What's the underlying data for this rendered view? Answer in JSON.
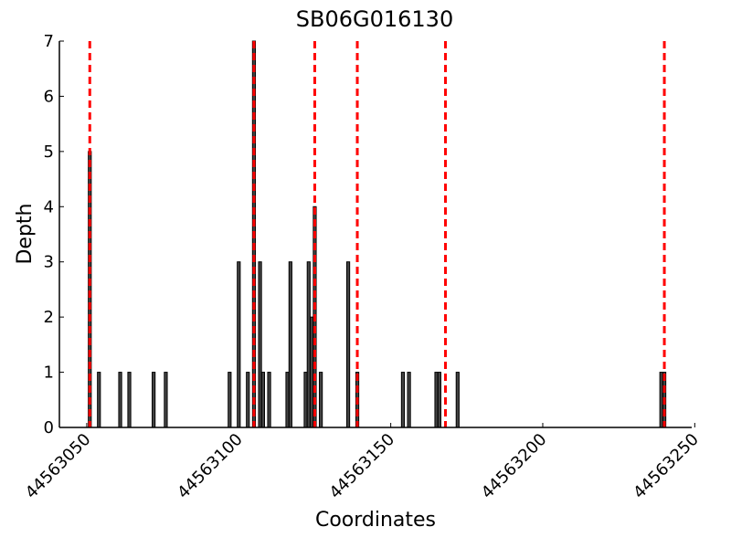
{
  "chart_data": {
    "type": "bar",
    "title": "SB06G016130",
    "x_label": "Coordinates",
    "y_label": "Depth",
    "x": [
      44563051,
      44563054,
      44563061,
      44563064,
      44563072,
      44563076,
      44563097,
      44563100,
      44563103,
      44563105,
      44563107,
      44563108,
      44563110,
      44563116,
      44563117,
      44563122,
      44563123,
      44563124,
      44563125,
      44563127,
      44563136,
      44563139,
      44563154,
      44563156,
      44563165,
      44563166,
      44563172,
      44563239,
      44563240
    ],
    "values": [
      5,
      1,
      1,
      1,
      1,
      1,
      1,
      3,
      1,
      7,
      3,
      1,
      1,
      1,
      3,
      1,
      3,
      2,
      4,
      1,
      3,
      1,
      1,
      1,
      1,
      1,
      1,
      1,
      1
    ],
    "color": "#444444",
    "vlines": [
      44563051,
      44563105,
      44563125,
      44563139,
      44563168,
      44563240
    ],
    "vline_color": "#ff0000",
    "xlim": [
      44563041,
      44563249
    ],
    "xticks": [
      44563050,
      44563100,
      44563150,
      44563200,
      44563250
    ],
    "ylim": [
      0,
      7
    ],
    "yticks": [
      0,
      1,
      2,
      3,
      4,
      5,
      6,
      7
    ]
  }
}
